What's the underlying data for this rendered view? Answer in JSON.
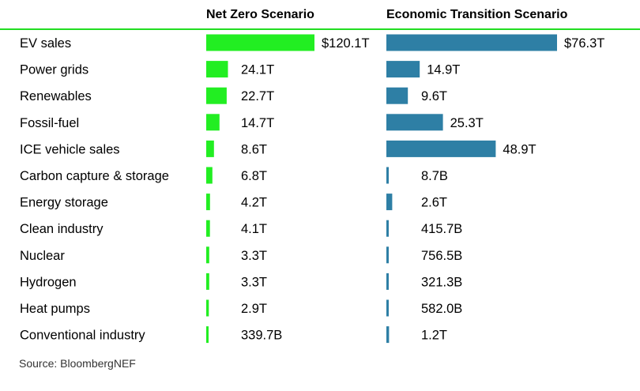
{
  "source": "Source: BloombergNEF",
  "colors": {
    "net_zero": "#22ee22",
    "economic_transition": "#2e7fa5",
    "header_rule": "#22dd22"
  },
  "chart_data": {
    "type": "bar",
    "orientation": "horizontal",
    "categories": [
      "EV sales",
      "Power grids",
      "Renewables",
      "Fossil-fuel",
      "ICE vehicle sales",
      "Carbon capture & storage",
      "Energy storage",
      "Clean industry",
      "Nuclear",
      "Hydrogen",
      "Heat pumps",
      "Conventional industry"
    ],
    "series": [
      {
        "name": "Net Zero Scenario",
        "color": "#22ee22",
        "values_trillions": [
          120.1,
          24.1,
          22.7,
          14.7,
          8.6,
          6.8,
          4.2,
          4.1,
          3.3,
          3.3,
          2.9,
          0.3397
        ],
        "labels": [
          "$120.1T",
          "24.1T",
          "22.7T",
          "14.7T",
          "8.6T",
          "6.8T",
          "4.2T",
          "4.1T",
          "3.3T",
          "3.3T",
          "2.9T",
          "339.7B"
        ]
      },
      {
        "name": "Economic Transition Scenario",
        "color": "#2e7fa5",
        "values_trillions": [
          76.3,
          14.9,
          9.6,
          25.3,
          48.9,
          0.0087,
          2.6,
          0.4157,
          0.7565,
          0.3213,
          0.582,
          1.2
        ],
        "labels": [
          "$76.3T",
          "14.9T",
          "9.6T",
          "25.3T",
          "48.9T",
          "8.7B",
          "2.6T",
          "415.7B",
          "756.5B",
          "321.3B",
          "582.0B",
          "1.2T"
        ]
      }
    ]
  }
}
